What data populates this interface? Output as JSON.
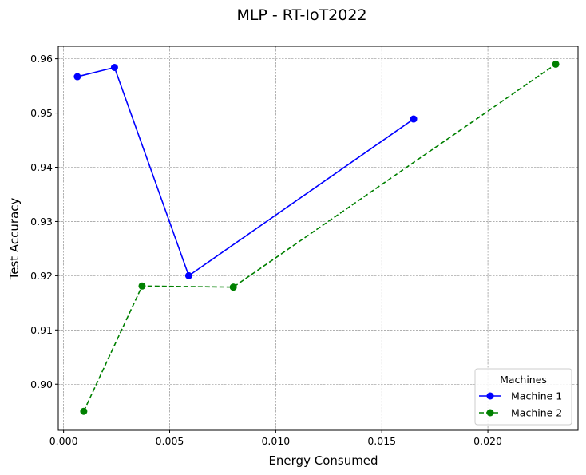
{
  "chart_data": {
    "type": "line",
    "title": "MLP - RT-IoT2022",
    "xlabel": "Energy Consumed",
    "ylabel": "Test Accuracy",
    "xlim": [
      -0.00025,
      0.02425
    ],
    "ylim": [
      0.8915,
      0.9623
    ],
    "xticks": [
      0.0,
      0.005,
      0.01,
      0.015,
      0.02
    ],
    "xtick_labels": [
      "0.000",
      "0.005",
      "0.010",
      "0.015",
      "0.020"
    ],
    "yticks": [
      0.9,
      0.91,
      0.92,
      0.93,
      0.94,
      0.95,
      0.96
    ],
    "ytick_labels": [
      "0.90",
      "0.91",
      "0.92",
      "0.93",
      "0.94",
      "0.95",
      "0.96"
    ],
    "grid": true,
    "legend": {
      "title": "Machines",
      "placement": "lower-right"
    },
    "series": [
      {
        "name": "Machine 1",
        "color": "#0000ff",
        "linestyle": "solid",
        "marker": "circle",
        "x": [
          0.00065,
          0.0024,
          0.0059,
          0.0165
        ],
        "y": [
          0.9567,
          0.9584,
          0.92,
          0.9489
        ]
      },
      {
        "name": "Machine 2",
        "color": "#008000",
        "linestyle": "dashed",
        "marker": "circle",
        "x": [
          0.00095,
          0.0037,
          0.008,
          0.0232
        ],
        "y": [
          0.895,
          0.9181,
          0.9179,
          0.959
        ]
      }
    ]
  }
}
